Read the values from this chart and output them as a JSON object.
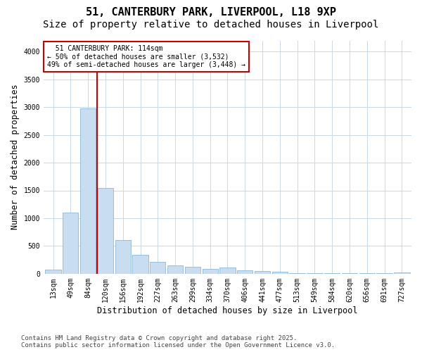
{
  "title_line1": "51, CANTERBURY PARK, LIVERPOOL, L18 9XP",
  "title_line2": "Size of property relative to detached houses in Liverpool",
  "xlabel": "Distribution of detached houses by size in Liverpool",
  "ylabel": "Number of detached properties",
  "categories": [
    "13sqm",
    "49sqm",
    "84sqm",
    "120sqm",
    "156sqm",
    "192sqm",
    "227sqm",
    "263sqm",
    "299sqm",
    "334sqm",
    "370sqm",
    "406sqm",
    "441sqm",
    "477sqm",
    "513sqm",
    "549sqm",
    "584sqm",
    "620sqm",
    "656sqm",
    "691sqm",
    "727sqm"
  ],
  "values": [
    75,
    1100,
    2975,
    1540,
    610,
    345,
    215,
    150,
    120,
    90,
    110,
    60,
    45,
    35,
    5,
    5,
    5,
    5,
    5,
    5,
    20
  ],
  "bar_color": "#c9ddf0",
  "bar_edge_color": "#7aafd4",
  "vline_color": "#cc0000",
  "vline_x_index": 2.5,
  "annotation_text": "  51 CANTERBURY PARK: 114sqm\n← 50% of detached houses are smaller (3,532)\n49% of semi-detached houses are larger (3,448) →",
  "annotation_box_color": "#cc0000",
  "footer_line1": "Contains HM Land Registry data © Crown copyright and database right 2025.",
  "footer_line2": "Contains public sector information licensed under the Open Government Licence v3.0.",
  "ylim": [
    0,
    4200
  ],
  "yticks": [
    0,
    500,
    1000,
    1500,
    2000,
    2500,
    3000,
    3500,
    4000
  ],
  "bg_color": "#ffffff",
  "grid_color": "#c8d8e8",
  "title_fontsize": 11,
  "subtitle_fontsize": 10,
  "tick_fontsize": 7,
  "label_fontsize": 8.5,
  "footer_fontsize": 6.5
}
